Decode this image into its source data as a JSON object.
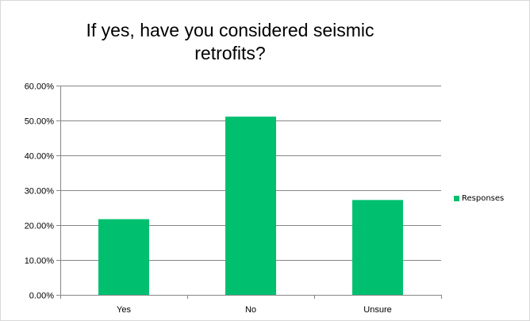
{
  "chart_data": {
    "type": "bar",
    "title": "If yes, have you considered seismic retrofits?",
    "categories": [
      "Yes",
      "No",
      "Unsure"
    ],
    "series": [
      {
        "name": "Responses",
        "values": [
          0.217,
          0.511,
          0.272
        ]
      }
    ],
    "ylim": [
      0,
      0.6
    ],
    "yticks": [
      0,
      0.1,
      0.2,
      0.3,
      0.4,
      0.5,
      0.6
    ],
    "ytick_labels": [
      "0.00%",
      "10.00%",
      "20.00%",
      "30.00%",
      "40.00%",
      "50.00%",
      "60.00%"
    ],
    "grid": true,
    "legend_position": "right",
    "color": "#00c070"
  }
}
